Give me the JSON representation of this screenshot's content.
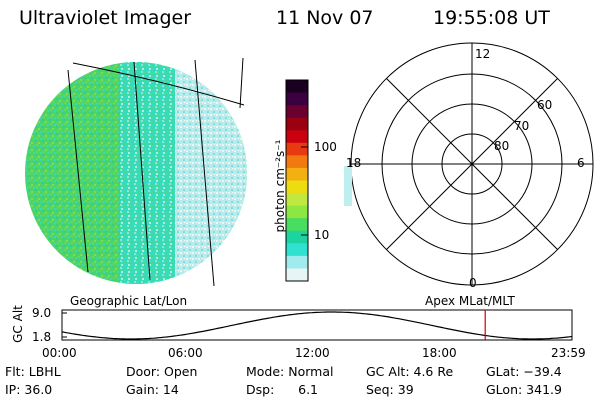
{
  "header": {
    "title": "Ultraviolet Imager",
    "date": "11 Nov 07",
    "time": "19:55:08 UT"
  },
  "colorbar": {
    "unit_label": "photon cm⁻²s⁻¹",
    "tick_labels": [
      "100",
      "10"
    ],
    "colors": [
      "#1a0020",
      "#3a0040",
      "#6a0030",
      "#990011",
      "#c80010",
      "#e83a10",
      "#f07a10",
      "#f3b010",
      "#eddc10",
      "#c0e840",
      "#8ce840",
      "#48dc60",
      "#1cd4a0",
      "#30e0d0",
      "#a0ecec",
      "#e6f6f6"
    ]
  },
  "polar": {
    "labels": {
      "top": "12",
      "right": "6",
      "left": "18",
      "bottom": "0",
      "ring1": "80",
      "ring2": "70",
      "ring3": "60"
    }
  },
  "coords": {
    "left_label": "Geographic Lat/Lon",
    "right_label": "Apex MLat/MLT"
  },
  "altitude_plot": {
    "ylabel": "GC Alt",
    "ytick_top": "9.0",
    "ytick_bottom": "1.8",
    "x_ticks": [
      "00:00",
      "06:00",
      "12:00",
      "18:00",
      "23:59"
    ],
    "marker_time": "19:55",
    "line_color": "#000000",
    "marker_color": "#cc0000"
  },
  "info": {
    "flt": "Flt: LBHL",
    "ip": "IP: 36.0",
    "door": "Door: Open",
    "gain": "Gain: 14",
    "mode": "Mode: Normal",
    "dsp": "Dsp:      6.1",
    "gcalt": "GC Alt: 4.6 Re",
    "seq": "Seq: 39",
    "glat": "GLat: −39.4",
    "glon": "GLon: 341.9"
  }
}
